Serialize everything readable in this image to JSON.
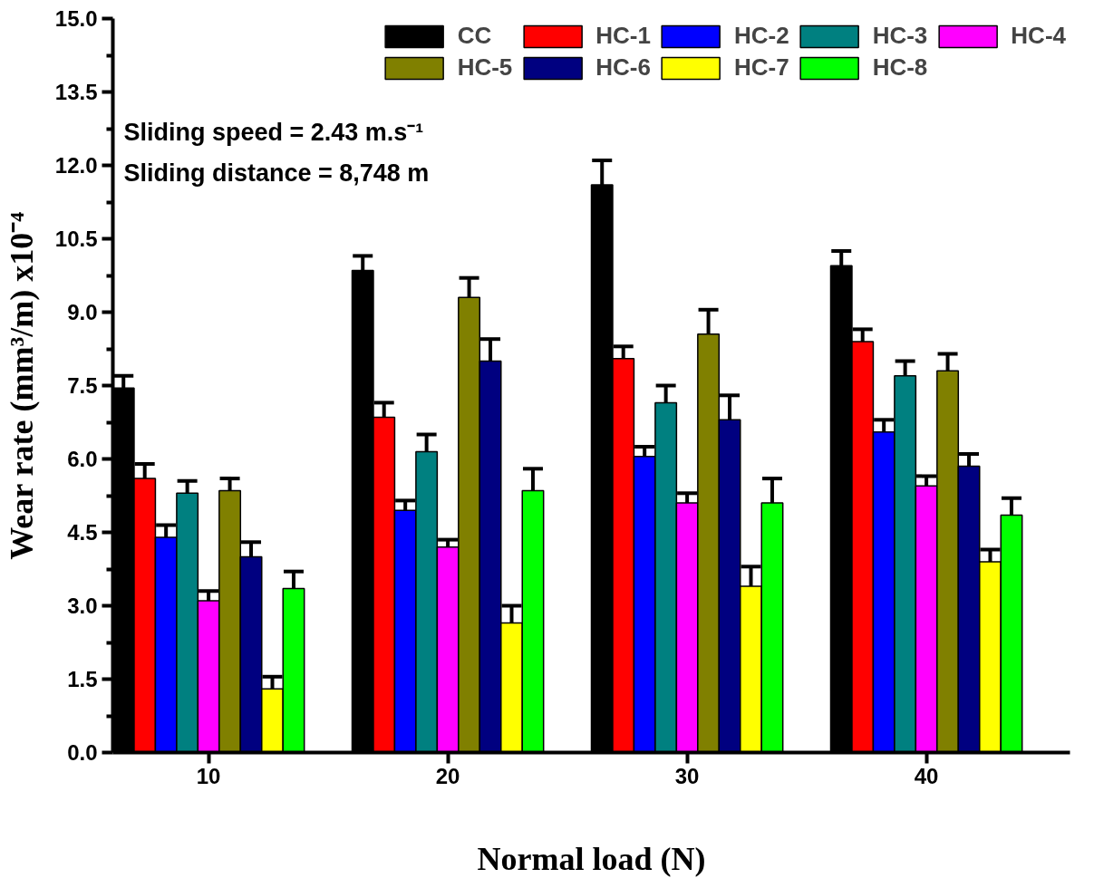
{
  "chart_data": {
    "type": "bar",
    "xlabel": "Normal load (N)",
    "ylabel": "Wear rate (mm³/m) x10⁻⁴",
    "categories": [
      "10",
      "20",
      "30",
      "40"
    ],
    "series": [
      {
        "name": "CC",
        "color": "#000000",
        "values": [
          7.45,
          9.85,
          11.6,
          9.95
        ],
        "errors": [
          0.25,
          0.3,
          0.5,
          0.3
        ]
      },
      {
        "name": "HC-1",
        "color": "#ff0000",
        "values": [
          5.6,
          6.85,
          8.05,
          8.4
        ],
        "errors": [
          0.3,
          0.3,
          0.25,
          0.25
        ]
      },
      {
        "name": "HC-2",
        "color": "#0000ff",
        "values": [
          4.4,
          4.95,
          6.05,
          6.55
        ],
        "errors": [
          0.25,
          0.2,
          0.2,
          0.25
        ]
      },
      {
        "name": "HC-3",
        "color": "#008080",
        "values": [
          5.3,
          6.15,
          7.15,
          7.7
        ],
        "errors": [
          0.25,
          0.35,
          0.35,
          0.3
        ]
      },
      {
        "name": "HC-4",
        "color": "#ff00ff",
        "values": [
          3.1,
          4.2,
          5.1,
          5.45
        ],
        "errors": [
          0.2,
          0.15,
          0.2,
          0.2
        ]
      },
      {
        "name": "HC-5",
        "color": "#808000",
        "values": [
          5.35,
          9.3,
          8.55,
          7.8
        ],
        "errors": [
          0.25,
          0.4,
          0.5,
          0.35
        ]
      },
      {
        "name": "HC-6",
        "color": "#000080",
        "values": [
          4.0,
          8.0,
          6.8,
          5.85
        ],
        "errors": [
          0.3,
          0.45,
          0.5,
          0.25
        ]
      },
      {
        "name": "HC-7",
        "color": "#ffff00",
        "values": [
          1.3,
          2.65,
          3.4,
          3.9
        ],
        "errors": [
          0.25,
          0.35,
          0.4,
          0.25
        ]
      },
      {
        "name": "HC-8",
        "color": "#00ff00",
        "values": [
          3.35,
          5.35,
          5.1,
          4.85
        ],
        "errors": [
          0.35,
          0.45,
          0.5,
          0.35
        ]
      }
    ],
    "ylim": [
      0,
      15
    ],
    "yticks": [
      {
        "value": 0,
        "label": "0.0"
      },
      {
        "value": 0.75,
        "label": null
      },
      {
        "value": 1.5,
        "label": "1.5"
      },
      {
        "value": 2.25,
        "label": null
      },
      {
        "value": 3,
        "label": "3.0"
      },
      {
        "value": 3.75,
        "label": null
      },
      {
        "value": 4.5,
        "label": "4.5"
      },
      {
        "value": 5.25,
        "label": null
      },
      {
        "value": 6,
        "label": "6.0"
      },
      {
        "value": 6.75,
        "label": null
      },
      {
        "value": 7.5,
        "label": "7.5"
      },
      {
        "value": 8.25,
        "label": null
      },
      {
        "value": 9,
        "label": "9.0"
      },
      {
        "value": 9.75,
        "label": null
      },
      {
        "value": 10.5,
        "label": "10.5"
      },
      {
        "value": 11.25,
        "label": null
      },
      {
        "value": 12,
        "label": "12.0"
      },
      {
        "value": 12.75,
        "label": null
      },
      {
        "value": 13.5,
        "label": "13.5"
      },
      {
        "value": 14.25,
        "label": null
      },
      {
        "value": 15,
        "label": "15.0"
      }
    ],
    "annotations": [
      "Sliding speed = 2.43 m.s⁻¹",
      "Sliding distance = 8,748 m"
    ],
    "legend": "top",
    "grid": false
  }
}
